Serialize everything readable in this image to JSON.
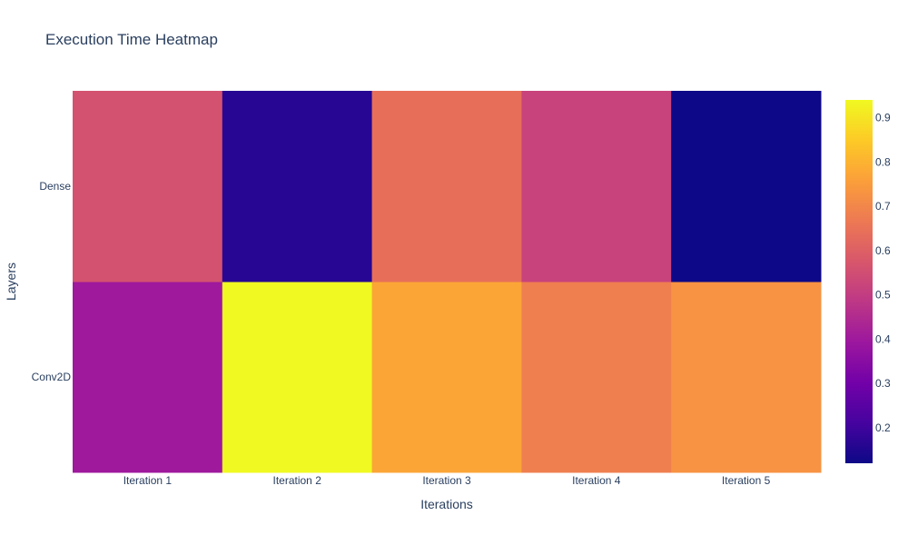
{
  "chart_data": {
    "type": "heatmap",
    "title": "Execution Time Heatmap",
    "xlabel": "Iterations",
    "ylabel": "Layers",
    "x": [
      "Iteration 1",
      "Iteration 2",
      "Iteration 3",
      "Iteration 4",
      "Iteration 5"
    ],
    "y": [
      "Conv2D",
      "Dense"
    ],
    "z": [
      [
        0.4,
        0.94,
        0.77,
        0.68,
        0.73
      ],
      [
        0.56,
        0.16,
        0.64,
        0.52,
        0.12
      ]
    ],
    "colorscale": "Plasma",
    "colorbar": {
      "range": [
        0.12,
        0.94
      ],
      "ticks": [
        0.2,
        0.3,
        0.4,
        0.5,
        0.6,
        0.7,
        0.8,
        0.9
      ],
      "tick_labels": [
        "0.2",
        "0.3",
        "0.4",
        "0.5",
        "0.6",
        "0.7",
        "0.8",
        "0.9"
      ]
    }
  }
}
